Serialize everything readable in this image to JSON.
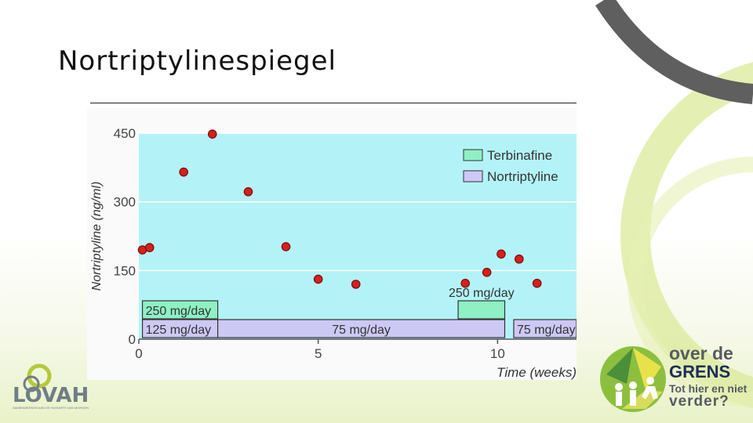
{
  "slide": {
    "title": "Nortriptylinespiegel"
  },
  "colors": {
    "plot_bg": "#b3f3f7",
    "point": "#d6201c",
    "terbinafine": "#8ef0c4",
    "nortriptyline": "#cec8f4",
    "decor_green": "#dbe99a",
    "decor_gray": "#5f5f5f"
  },
  "chart_data": {
    "type": "scatter",
    "title": "",
    "xlabel": "Time (weeks)",
    "ylabel": "Nortriptyline (ng/ml)",
    "xlim": [
      0,
      12.2
    ],
    "ylim": [
      0,
      450
    ],
    "xticks": [
      0,
      5,
      10
    ],
    "yticks": [
      0,
      150,
      300,
      450
    ],
    "grid": "horizontal",
    "legend_position": "top-right",
    "legend": [
      {
        "name": "Terbinafine",
        "color": "#8ef0c4"
      },
      {
        "name": "Nortriptyline",
        "color": "#cec8f4"
      }
    ],
    "points": [
      {
        "x": 0.1,
        "y": 195
      },
      {
        "x": 0.3,
        "y": 200
      },
      {
        "x": 1.25,
        "y": 365
      },
      {
        "x": 2.05,
        "y": 448
      },
      {
        "x": 3.05,
        "y": 322
      },
      {
        "x": 4.1,
        "y": 202
      },
      {
        "x": 5.0,
        "y": 131
      },
      {
        "x": 6.05,
        "y": 120
      },
      {
        "x": 9.1,
        "y": 122
      },
      {
        "x": 9.7,
        "y": 146
      },
      {
        "x": 10.1,
        "y": 186
      },
      {
        "x": 10.6,
        "y": 175
      },
      {
        "x": 11.1,
        "y": 122
      }
    ],
    "dose_bars": [
      {
        "drug": "Terbinafine",
        "start": 0.1,
        "end": 2.2,
        "label": "250 mg/day",
        "label_inside": true
      },
      {
        "drug": "Terbinafine",
        "start": 8.9,
        "end": 10.2,
        "label": "250 mg/day",
        "label_inside": false
      },
      {
        "drug": "Nortriptyline",
        "start": 0.1,
        "end": 2.2,
        "label": "125 mg/day",
        "label_inside": true
      },
      {
        "drug": "Nortriptyline",
        "start": 2.2,
        "end": 10.2,
        "label": "75 mg/day",
        "label_inside": true
      },
      {
        "drug": "Nortriptyline",
        "start": 10.45,
        "end": 12.2,
        "label": "75 mg/day",
        "label_inside": true
      }
    ]
  },
  "logos": {
    "left": {
      "name": "LOVAH",
      "tagline": "SAMENWERKEN AAN DE HUISARTS VAN MORGEN"
    },
    "right": {
      "line1": "over de",
      "line2": "GRENS",
      "line3": "Tot hier en niet",
      "line4": "verder?"
    }
  }
}
